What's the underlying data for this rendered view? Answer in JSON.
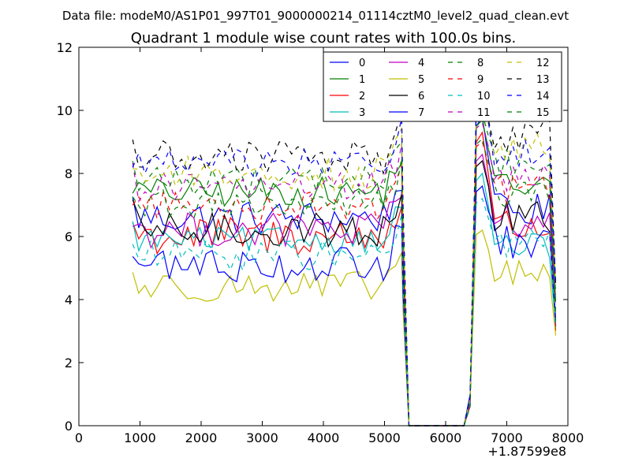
{
  "chart_data": {
    "type": "line",
    "suptitle": "Data file: modeM0/AS1P01_997T01_9000000214_01114cztM0_level2_quad_clean.evt",
    "title": "Quadrant 1 module wise count rates with 100.0s bins.",
    "xlabel": "",
    "ylabel": "",
    "x_offset_label": "+1.87599e8",
    "xlim": [
      0,
      8000
    ],
    "ylim": [
      0,
      12
    ],
    "xticks": [
      0,
      1000,
      2000,
      3000,
      4000,
      5000,
      6000,
      7000,
      8000
    ],
    "xtick_labels": [
      "0",
      "1000",
      "2000",
      "3000",
      "4000",
      "5000",
      "6000",
      "7000",
      "8000"
    ],
    "yticks": [
      0,
      2,
      4,
      6,
      8,
      10,
      12
    ],
    "ytick_labels": [
      "0",
      "2",
      "4",
      "6",
      "8",
      "10",
      "12"
    ],
    "grid": false,
    "legend_position": "top-right",
    "legend_columns": 4,
    "segment1": {
      "x_start": 880,
      "x_step": 100,
      "n_points": 45,
      "drop_end": 5300
    },
    "gap": {
      "x_start": 5400,
      "x_end": 6300,
      "value": 0
    },
    "segment2": {
      "x_start": 6500,
      "x_step": 100,
      "n_points": 14
    },
    "series": [
      {
        "name": "0",
        "color": "#0000ff",
        "style": "solid",
        "level1": 6.6,
        "level2": 6.8,
        "peak": 9.8,
        "amp": 0.35
      },
      {
        "name": "1",
        "color": "#008000",
        "style": "solid",
        "level1": 7.4,
        "level2": 7.6,
        "peak": 9.7,
        "amp": 0.3
      },
      {
        "name": "2",
        "color": "#ff0000",
        "style": "solid",
        "level1": 6.0,
        "level2": 6.3,
        "peak": 9.3,
        "amp": 0.4
      },
      {
        "name": "3",
        "color": "#00bfbf",
        "style": "solid",
        "level1": 5.9,
        "level2": 5.7,
        "peak": 8.0,
        "amp": 0.25
      },
      {
        "name": "4",
        "color": "#bf00bf",
        "style": "solid",
        "level1": 6.2,
        "level2": 6.5,
        "peak": 8.6,
        "amp": 0.35
      },
      {
        "name": "5",
        "color": "#bfbf00",
        "style": "solid",
        "level1": 4.4,
        "level2": 4.8,
        "peak": 6.2,
        "amp": 0.3
      },
      {
        "name": "6",
        "color": "#000000",
        "style": "solid",
        "level1": 6.2,
        "level2": 6.6,
        "peak": 8.4,
        "amp": 0.35
      },
      {
        "name": "7",
        "color": "#0000ff",
        "style": "solid",
        "level1": 5.1,
        "level2": 5.8,
        "peak": 7.6,
        "amp": 0.35
      },
      {
        "name": "8",
        "color": "#008000",
        "style": "dashed",
        "level1": 7.8,
        "level2": 8.3,
        "peak": 9.9,
        "amp": 0.3
      },
      {
        "name": "9",
        "color": "#ff0000",
        "style": "dashed",
        "level1": 7.0,
        "level2": 7.5,
        "peak": 9.0,
        "amp": 0.3
      },
      {
        "name": "10",
        "color": "#00bfbf",
        "style": "dashed",
        "level1": 5.4,
        "level2": 5.8,
        "peak": 7.2,
        "amp": 0.3
      },
      {
        "name": "11",
        "color": "#bf00bf",
        "style": "dashed",
        "level1": 7.6,
        "level2": 7.9,
        "peak": 9.6,
        "amp": 0.3
      },
      {
        "name": "12",
        "color": "#bfbf00",
        "style": "dashed",
        "level1": 8.0,
        "level2": 8.8,
        "peak": 10.2,
        "amp": 0.35
      },
      {
        "name": "13",
        "color": "#000000",
        "style": "dashed",
        "level1": 8.5,
        "level2": 9.2,
        "peak": 10.1,
        "amp": 0.35
      },
      {
        "name": "14",
        "color": "#0000ff",
        "style": "dashed",
        "level1": 8.3,
        "level2": 8.7,
        "peak": 10.4,
        "amp": 0.3
      },
      {
        "name": "15",
        "color": "#008000",
        "style": "dashed",
        "level1": 7.0,
        "level2": 7.3,
        "peak": 9.1,
        "amp": 0.3
      }
    ]
  }
}
